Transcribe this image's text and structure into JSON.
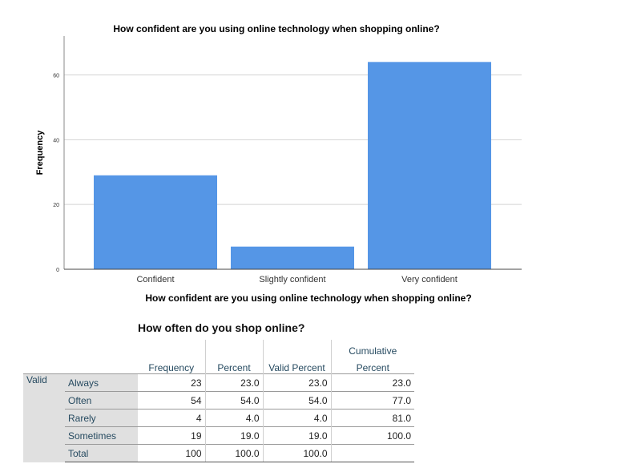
{
  "chart_data": {
    "type": "bar",
    "title": "How confident are you using online technology when shopping online?",
    "xlabel": "How confident are you using online technology when shopping online?",
    "ylabel": "Frequency",
    "categories": [
      "Confident",
      "Slightly confident",
      "Very confident"
    ],
    "values": [
      29,
      7,
      64
    ],
    "ylim": [
      0,
      72
    ],
    "yticks": [
      0,
      20,
      40,
      60
    ],
    "grid": true,
    "bar_color": "#5596e6"
  },
  "table": {
    "title": "How often do you shop online?",
    "headers": {
      "frequency": "Frequency",
      "percent": "Percent",
      "valid_percent": "Valid Percent",
      "cumulative_line1": "Cumulative",
      "cumulative_line2": "Percent"
    },
    "group_label": "Valid",
    "rows": [
      {
        "label": "Always",
        "frequency": "23",
        "percent": "23.0",
        "valid_percent": "23.0",
        "cumulative": "23.0"
      },
      {
        "label": "Often",
        "frequency": "54",
        "percent": "54.0",
        "valid_percent": "54.0",
        "cumulative": "77.0"
      },
      {
        "label": "Rarely",
        "frequency": "4",
        "percent": "4.0",
        "valid_percent": "4.0",
        "cumulative": "81.0"
      },
      {
        "label": "Sometimes",
        "frequency": "19",
        "percent": "19.0",
        "valid_percent": "19.0",
        "cumulative": "100.0"
      },
      {
        "label": "Total",
        "frequency": "100",
        "percent": "100.0",
        "valid_percent": "100.0",
        "cumulative": ""
      }
    ]
  }
}
